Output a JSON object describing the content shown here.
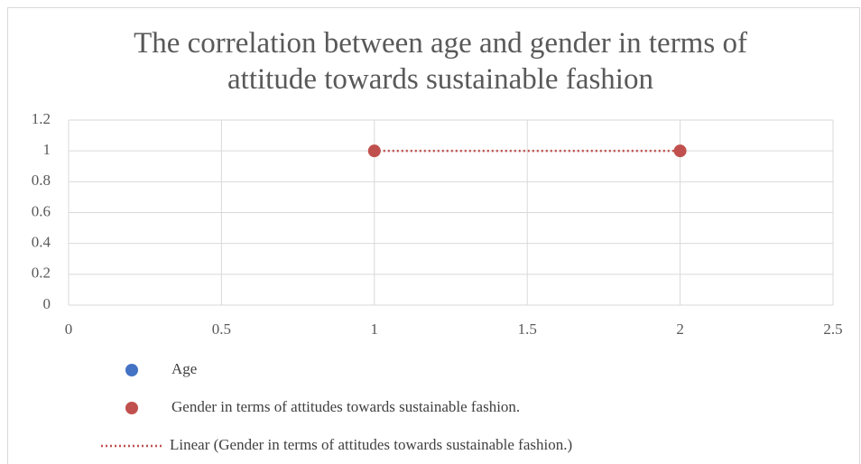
{
  "chart_data": {
    "type": "scatter",
    "title": "The correlation between age and gender in terms of attitude towards sustainable fashion",
    "series": [
      {
        "name": "Age",
        "color": "#4472c4",
        "x": [],
        "y": []
      },
      {
        "name": "Gender in terms of attitudes towards sustainable fashion.",
        "color": "#c0504d",
        "x": [
          1,
          2
        ],
        "y": [
          1,
          1
        ]
      }
    ],
    "trendline": {
      "name": "Linear (Gender in terms of attitudes towards sustainable fashion.)",
      "color": "#c0504d",
      "style": "dotted",
      "x": [
        1,
        2
      ],
      "y": [
        1,
        1
      ]
    },
    "xlim": [
      0,
      2.5
    ],
    "xticks": [
      0,
      0.5,
      1,
      1.5,
      2,
      2.5
    ],
    "ylim": [
      0,
      1.2
    ],
    "yticks": [
      0,
      0.2,
      0.4,
      0.6,
      0.8,
      1,
      1.2
    ],
    "grid": true
  }
}
